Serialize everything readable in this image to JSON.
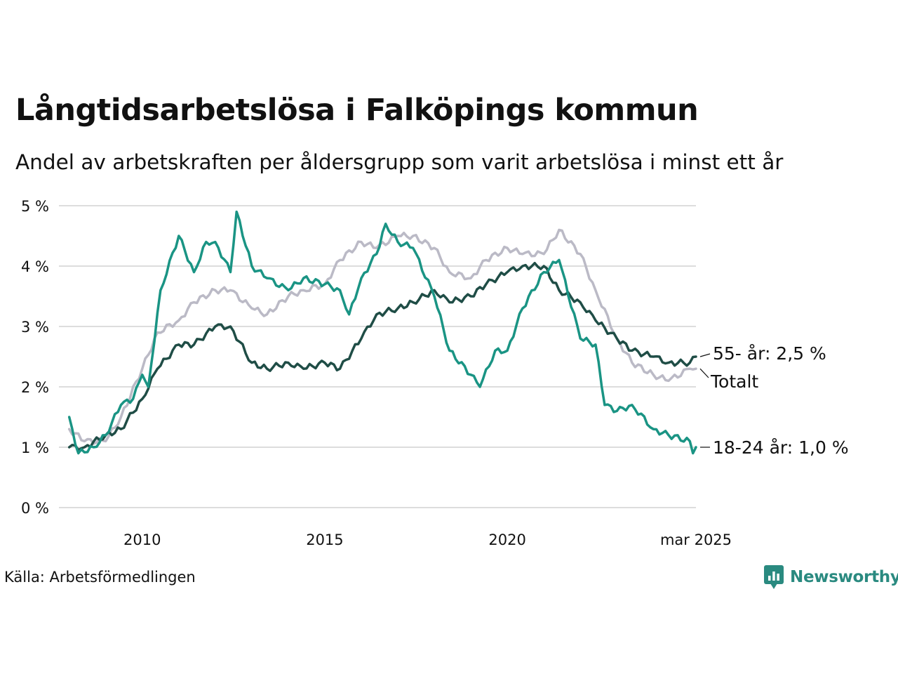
{
  "header": {
    "title": "Långtidsarbetslösa i Falköpings kommun",
    "subtitle": "Andel av arbetskraften per åldersgrupp som varit arbetslösa i minst ett år"
  },
  "footer": {
    "source": "Källa: Arbetsförmedlingen",
    "brand": "Newsworthy"
  },
  "colors": {
    "youth": "#1a9484",
    "senior": "#1f4d46",
    "total": "#bbbac6",
    "grid": "#dddddd",
    "text": "#111111",
    "brand": "#2a8a80"
  },
  "chart_data": {
    "type": "line",
    "title": "Långtidsarbetslösa i Falköpings kommun",
    "subtitle": "Andel av arbetskraften per åldersgrupp som varit arbetslösa i minst ett år",
    "xlabel": "",
    "ylabel": "",
    "x_range": [
      "2008-01",
      "2025-03"
    ],
    "ylim": [
      0,
      5
    ],
    "y_ticks": [
      0,
      1,
      2,
      3,
      4,
      5
    ],
    "y_tick_labels": [
      "0 %",
      "1 %",
      "2 %",
      "3 %",
      "4 %",
      "5 %"
    ],
    "x_ticks": [
      "2010-01",
      "2015-01",
      "2020-01",
      "2025-03"
    ],
    "x_tick_labels": [
      "2010",
      "2015",
      "2020",
      "mar 2025"
    ],
    "grid": true,
    "legend": "direct labels at line ends",
    "series": [
      {
        "name": "Totalt",
        "label": "Totalt",
        "color": "#bbbac6",
        "points": [
          [
            "2008-01",
            1.3
          ],
          [
            "2008-06",
            1.1
          ],
          [
            "2009-01",
            1.1
          ],
          [
            "2009-06",
            1.5
          ],
          [
            "2010-01",
            2.3
          ],
          [
            "2010-06",
            2.9
          ],
          [
            "2011-01",
            3.1
          ],
          [
            "2011-06",
            3.4
          ],
          [
            "2012-01",
            3.6
          ],
          [
            "2012-06",
            3.6
          ],
          [
            "2013-01",
            3.3
          ],
          [
            "2013-06",
            3.2
          ],
          [
            "2014-01",
            3.5
          ],
          [
            "2014-06",
            3.6
          ],
          [
            "2015-01",
            3.7
          ],
          [
            "2015-06",
            4.1
          ],
          [
            "2016-01",
            4.4
          ],
          [
            "2016-06",
            4.3
          ],
          [
            "2017-01",
            4.5
          ],
          [
            "2017-06",
            4.5
          ],
          [
            "2018-01",
            4.3
          ],
          [
            "2018-06",
            3.9
          ],
          [
            "2019-01",
            3.8
          ],
          [
            "2019-06",
            4.1
          ],
          [
            "2020-01",
            4.3
          ],
          [
            "2020-06",
            4.2
          ],
          [
            "2021-01",
            4.2
          ],
          [
            "2021-06",
            4.6
          ],
          [
            "2022-01",
            4.2
          ],
          [
            "2022-06",
            3.6
          ],
          [
            "2023-01",
            2.8
          ],
          [
            "2023-06",
            2.4
          ],
          [
            "2024-01",
            2.2
          ],
          [
            "2024-06",
            2.1
          ],
          [
            "2025-01",
            2.3
          ],
          [
            "2025-03",
            2.3
          ]
        ]
      },
      {
        "name": "55- år",
        "label": "55- år: 2,5 %",
        "color": "#1f4d46",
        "points": [
          [
            "2008-01",
            1.0
          ],
          [
            "2008-06",
            1.0
          ],
          [
            "2009-01",
            1.2
          ],
          [
            "2009-06",
            1.3
          ],
          [
            "2010-01",
            1.8
          ],
          [
            "2010-06",
            2.3
          ],
          [
            "2011-01",
            2.7
          ],
          [
            "2011-06",
            2.7
          ],
          [
            "2012-01",
            3.0
          ],
          [
            "2012-06",
            3.0
          ],
          [
            "2013-01",
            2.4
          ],
          [
            "2013-06",
            2.3
          ],
          [
            "2014-01",
            2.4
          ],
          [
            "2014-06",
            2.3
          ],
          [
            "2015-01",
            2.4
          ],
          [
            "2015-06",
            2.3
          ],
          [
            "2016-01",
            2.8
          ],
          [
            "2016-06",
            3.2
          ],
          [
            "2017-01",
            3.3
          ],
          [
            "2017-06",
            3.4
          ],
          [
            "2018-01",
            3.6
          ],
          [
            "2018-06",
            3.4
          ],
          [
            "2019-01",
            3.5
          ],
          [
            "2019-06",
            3.7
          ],
          [
            "2020-01",
            3.9
          ],
          [
            "2020-06",
            4.0
          ],
          [
            "2021-01",
            4.0
          ],
          [
            "2021-06",
            3.6
          ],
          [
            "2022-01",
            3.4
          ],
          [
            "2022-06",
            3.1
          ],
          [
            "2023-01",
            2.8
          ],
          [
            "2023-06",
            2.6
          ],
          [
            "2024-01",
            2.5
          ],
          [
            "2024-06",
            2.4
          ],
          [
            "2025-01",
            2.4
          ],
          [
            "2025-03",
            2.5
          ]
        ]
      },
      {
        "name": "18-24 år",
        "label": "18-24 år: 1,0 %",
        "color": "#1a9484",
        "points": [
          [
            "2008-01",
            1.5
          ],
          [
            "2008-04",
            0.9
          ],
          [
            "2008-09",
            1.0
          ],
          [
            "2009-01",
            1.2
          ],
          [
            "2009-06",
            1.7
          ],
          [
            "2009-10",
            1.8
          ],
          [
            "2010-01",
            2.2
          ],
          [
            "2010-03",
            2.0
          ],
          [
            "2010-07",
            3.6
          ],
          [
            "2011-01",
            4.5
          ],
          [
            "2011-06",
            3.9
          ],
          [
            "2011-10",
            4.4
          ],
          [
            "2012-01",
            4.4
          ],
          [
            "2012-06",
            3.9
          ],
          [
            "2012-08",
            4.9
          ],
          [
            "2013-01",
            4.0
          ],
          [
            "2013-06",
            3.8
          ],
          [
            "2014-01",
            3.6
          ],
          [
            "2014-06",
            3.8
          ],
          [
            "2015-01",
            3.7
          ],
          [
            "2015-06",
            3.6
          ],
          [
            "2015-09",
            3.2
          ],
          [
            "2016-01",
            3.8
          ],
          [
            "2016-06",
            4.2
          ],
          [
            "2016-09",
            4.7
          ],
          [
            "2017-01",
            4.4
          ],
          [
            "2017-06",
            4.3
          ],
          [
            "2018-01",
            3.5
          ],
          [
            "2018-06",
            2.6
          ],
          [
            "2019-01",
            2.2
          ],
          [
            "2019-04",
            2.0
          ],
          [
            "2019-09",
            2.6
          ],
          [
            "2020-01",
            2.6
          ],
          [
            "2020-06",
            3.3
          ],
          [
            "2021-01",
            3.9
          ],
          [
            "2021-06",
            4.1
          ],
          [
            "2022-01",
            2.8
          ],
          [
            "2022-06",
            2.7
          ],
          [
            "2022-09",
            1.7
          ],
          [
            "2023-01",
            1.6
          ],
          [
            "2023-06",
            1.7
          ],
          [
            "2024-01",
            1.3
          ],
          [
            "2024-06",
            1.2
          ],
          [
            "2025-01",
            1.1
          ],
          [
            "2025-02",
            0.9
          ],
          [
            "2025-03",
            1.0
          ]
        ]
      }
    ]
  }
}
